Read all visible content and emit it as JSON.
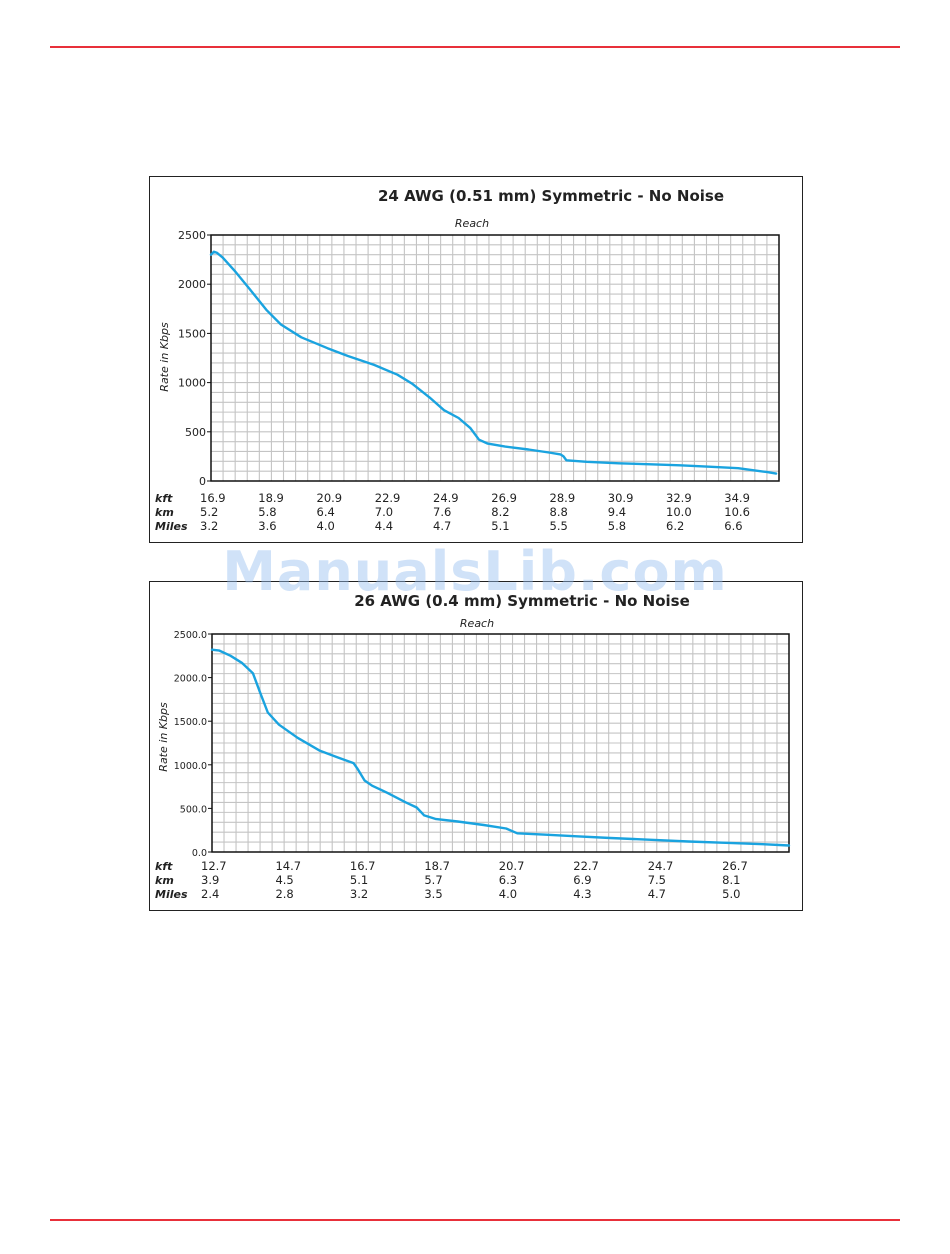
{
  "watermark": "ManualsLib.com",
  "chart_data": [
    {
      "type": "line",
      "title": "24 AWG (0.51 mm) Symmetric - No Noise",
      "xlabel": "Reach",
      "ylabel": "Rate in Kbps",
      "ylim": [
        0,
        2500
      ],
      "y_ticks": [
        "0",
        "500",
        "1000",
        "1500",
        "2000",
        "2500"
      ],
      "xlim": [
        16.9,
        36.4
      ],
      "grid": true,
      "line_color": "#1aa3df",
      "row_labels": [
        "kft",
        "km",
        "Miles"
      ],
      "x_ticks": [
        {
          "kft": "16.9",
          "km": "5.2",
          "miles": "3.2"
        },
        {
          "kft": "18.9",
          "km": "5.8",
          "miles": "3.6"
        },
        {
          "kft": "20.9",
          "km": "6.4",
          "miles": "4.0"
        },
        {
          "kft": "22.9",
          "km": "7.0",
          "miles": "4.4"
        },
        {
          "kft": "24.9",
          "km": "7.6",
          "miles": "4.7"
        },
        {
          "kft": "26.9",
          "km": "8.2",
          "miles": "5.1"
        },
        {
          "kft": "28.9",
          "km": "8.8",
          "miles": "5.5"
        },
        {
          "kft": "30.9",
          "km": "9.4",
          "miles": "5.8"
        },
        {
          "kft": "32.9",
          "km": "10.0",
          "miles": "6.2"
        },
        {
          "kft": "34.9",
          "km": "10.6",
          "miles": "6.6"
        }
      ],
      "series": [
        {
          "x": [
            16.9,
            17.0,
            17.1,
            17.3,
            17.7,
            18.2,
            18.8,
            19.3,
            20.0,
            20.9,
            21.6,
            22.5,
            23.3,
            23.8,
            24.4,
            24.9,
            25.4,
            25.8,
            26.1,
            26.4,
            27.0,
            27.8,
            28.5,
            28.9,
            29.0,
            29.1,
            29.8,
            30.9,
            32.0,
            33.0,
            34.0,
            35.0,
            35.5,
            36.0,
            36.3
          ],
          "y": [
            2300,
            2330,
            2320,
            2270,
            2140,
            1960,
            1740,
            1590,
            1460,
            1350,
            1270,
            1180,
            1080,
            990,
            850,
            720,
            640,
            540,
            420,
            380,
            350,
            320,
            290,
            270,
            250,
            210,
            195,
            180,
            170,
            160,
            145,
            130,
            110,
            90,
            75
          ]
        }
      ]
    },
    {
      "type": "line",
      "title": "26 AWG (0.4 mm) Symmetric - No Noise",
      "xlabel": "Reach",
      "ylabel": "Rate in Kbps",
      "ylim": [
        0,
        2500
      ],
      "y_ticks": [
        "0.0",
        "500.0",
        "1000.0",
        "1500.0",
        "2000.0",
        "2500.0"
      ],
      "xlim": [
        12.7,
        28.2
      ],
      "grid": true,
      "line_color": "#1aa3df",
      "row_labels": [
        "kft",
        "km",
        "Miles"
      ],
      "x_ticks": [
        {
          "kft": "12.7",
          "km": "3.9",
          "miles": "2.4"
        },
        {
          "kft": "14.7",
          "km": "4.5",
          "miles": "2.8"
        },
        {
          "kft": "16.7",
          "km": "5.1",
          "miles": "3.2"
        },
        {
          "kft": "18.7",
          "km": "5.7",
          "miles": "3.5"
        },
        {
          "kft": "20.7",
          "km": "6.3",
          "miles": "4.0"
        },
        {
          "kft": "22.7",
          "km": "6.9",
          "miles": "4.3"
        },
        {
          "kft": "24.7",
          "km": "7.5",
          "miles": "4.7"
        },
        {
          "kft": "26.7",
          "km": "8.1",
          "miles": "5.0"
        }
      ],
      "series": [
        {
          "x": [
            12.7,
            12.9,
            13.2,
            13.5,
            13.8,
            14.0,
            14.2,
            14.5,
            15.0,
            15.6,
            16.1,
            16.5,
            16.6,
            16.8,
            17.0,
            17.4,
            17.9,
            18.2,
            18.4,
            18.7,
            19.3,
            20.0,
            20.6,
            20.9,
            21.6,
            22.5,
            23.4,
            24.5,
            25.5,
            26.5,
            27.5,
            28.2
          ],
          "y": [
            2320,
            2310,
            2250,
            2170,
            2050,
            1820,
            1600,
            1460,
            1310,
            1160,
            1080,
            1020,
            960,
            820,
            760,
            680,
            570,
            510,
            420,
            380,
            350,
            310,
            270,
            215,
            200,
            180,
            160,
            140,
            120,
            105,
            90,
            75
          ]
        }
      ]
    }
  ]
}
